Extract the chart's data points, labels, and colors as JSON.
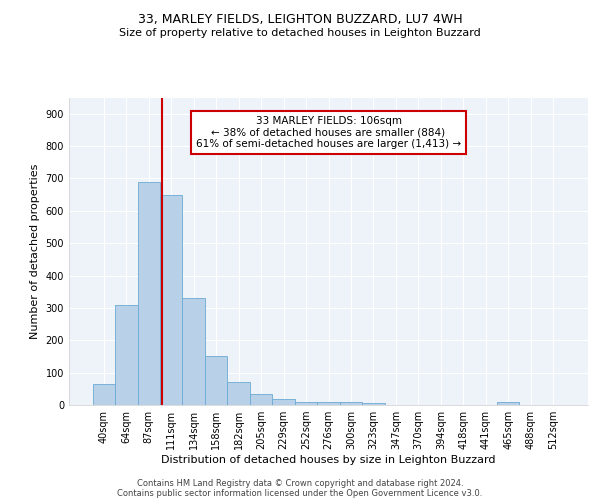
{
  "title1": "33, MARLEY FIELDS, LEIGHTON BUZZARD, LU7 4WH",
  "title2": "Size of property relative to detached houses in Leighton Buzzard",
  "xlabel": "Distribution of detached houses by size in Leighton Buzzard",
  "ylabel": "Number of detached properties",
  "bar_values": [
    65,
    310,
    690,
    650,
    330,
    150,
    70,
    35,
    20,
    10,
    10,
    10,
    5,
    0,
    0,
    0,
    0,
    0,
    10,
    0,
    0
  ],
  "bin_labels": [
    "40sqm",
    "64sqm",
    "87sqm",
    "111sqm",
    "134sqm",
    "158sqm",
    "182sqm",
    "205sqm",
    "229sqm",
    "252sqm",
    "276sqm",
    "300sqm",
    "323sqm",
    "347sqm",
    "370sqm",
    "394sqm",
    "418sqm",
    "441sqm",
    "465sqm",
    "488sqm",
    "512sqm"
  ],
  "bar_color": "#b8d0e8",
  "bar_edge_color": "#6aaad4",
  "vline_color": "#cc0000",
  "vline_x_index": 2.57,
  "annotation_line1": "33 MARLEY FIELDS: 106sqm",
  "annotation_line2": "← 38% of detached houses are smaller (884)",
  "annotation_line3": "61% of semi-detached houses are larger (1,413) →",
  "annotation_box_color": "#ffffff",
  "annotation_box_edge": "#cc0000",
  "ylim": [
    0,
    950
  ],
  "yticks": [
    0,
    100,
    200,
    300,
    400,
    500,
    600,
    700,
    800,
    900
  ],
  "footer1": "Contains HM Land Registry data © Crown copyright and database right 2024.",
  "footer2": "Contains public sector information licensed under the Open Government Licence v3.0.",
  "bg_color": "#eef2f9",
  "grid_color": "#ffffff",
  "title1_fontsize": 9,
  "title2_fontsize": 8,
  "ylabel_fontsize": 8,
  "xlabel_fontsize": 8,
  "tick_fontsize": 7,
  "footer_fontsize": 6,
  "annot_fontsize": 7.5
}
